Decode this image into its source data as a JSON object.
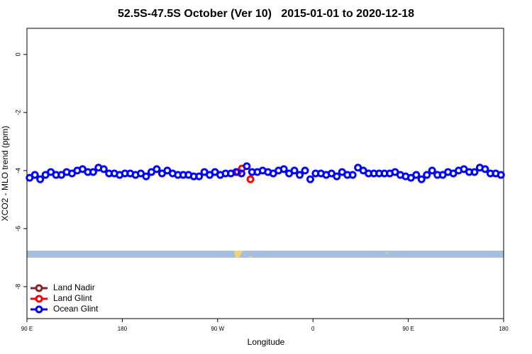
{
  "chart_data": {
    "type": "scatter",
    "title": "52.5S-47.5S October (Ver 10)   2015-01-01 to 2020-12-18",
    "xlabel": "Longitude",
    "ylabel": "XCO2 - MLO trend (ppm)",
    "xlim": [
      90,
      540
    ],
    "ylim": [
      -9.1,
      0.9
    ],
    "xticks": [
      {
        "value": 90,
        "label": "90 E"
      },
      180,
      {
        "value": 270,
        "label": "90 W"
      },
      {
        "value": 360,
        "label": "0"
      },
      {
        "value": 450,
        "label": "90 E"
      },
      {
        "value": 540,
        "label": "180"
      }
    ],
    "yticks": [
      0,
      -2,
      -4,
      -6,
      -8
    ],
    "legend": "bottomleft",
    "series": [
      {
        "name": "Land Nadir",
        "color": "#8b2323",
        "x": [],
        "values": []
      },
      {
        "name": "Land Glint",
        "color": "#ff0000",
        "x": [
          289,
          293,
          301
        ],
        "values": [
          -4.05,
          -3.93,
          -4.3
        ]
      },
      {
        "name": "Ocean Glint",
        "color": "#0000ff",
        "x": [
          92.5,
          97.5,
          102.5,
          107.5,
          112.5,
          117.5,
          122.5,
          127.5,
          132.5,
          137.5,
          142.5,
          147.5,
          152.5,
          157.5,
          162.5,
          167.5,
          172.5,
          177.5,
          182.5,
          187.5,
          192.5,
          197.5,
          202.5,
          207.5,
          212.5,
          217.5,
          222.5,
          227.5,
          232.5,
          237.5,
          242.5,
          247.5,
          252.5,
          257.5,
          262.5,
          267.5,
          272.5,
          277.5,
          282.5,
          287.5,
          292.5,
          297.5,
          302.5,
          307.5,
          312.5,
          317.5,
          322.5,
          327.5,
          332.5,
          337.5,
          342.5,
          347.5,
          352.5,
          357.5,
          362.5,
          367.5,
          372.5,
          377.5,
          382.5,
          387.5,
          392.5,
          397.5,
          402.5,
          407.5,
          412.5,
          417.5,
          422.5,
          427.5,
          432.5,
          437.5,
          442.5,
          447.5,
          452.5,
          457.5,
          462.5,
          467.5,
          472.5,
          477.5,
          482.5,
          487.5,
          492.5,
          497.5,
          502.5,
          507.5,
          512.5,
          517.5,
          522.5,
          527.5,
          532.5,
          537.5
        ],
        "values": [
          -4.25,
          -4.15,
          -4.3,
          -4.15,
          -4.05,
          -4.15,
          -4.15,
          -4.05,
          -4.1,
          -4.0,
          -3.95,
          -4.05,
          -4.05,
          -3.9,
          -3.95,
          -4.1,
          -4.1,
          -4.15,
          -4.1,
          -4.1,
          -4.15,
          -4.1,
          -4.2,
          -4.05,
          -3.95,
          -4.1,
          -4.0,
          -4.1,
          -4.15,
          -4.15,
          -4.15,
          -4.2,
          -4.2,
          -4.05,
          -4.15,
          -4.05,
          -4.15,
          -4.1,
          -4.1,
          -4.05,
          -4.1,
          -3.85,
          -4.05,
          -4.05,
          -4.0,
          -4.05,
          -4.1,
          -4.0,
          -3.95,
          -4.1,
          -4.0,
          -4.15,
          -4.0,
          -4.3,
          -4.1,
          -4.1,
          -4.15,
          -4.1,
          -4.2,
          -4.05,
          -4.15,
          -4.15,
          -3.9,
          -4.0,
          -4.1,
          -4.1,
          -4.1,
          -4.1,
          -4.1,
          -4.05,
          -4.15,
          -4.2,
          -4.25,
          -4.15,
          -4.3,
          -4.15,
          -4.0,
          -4.15,
          -4.15,
          -4.05,
          -4.1,
          -4.0,
          -3.95,
          -4.05,
          -4.05,
          -3.9,
          -3.95,
          -4.1,
          -4.1,
          -4.15
        ]
      }
    ]
  }
}
